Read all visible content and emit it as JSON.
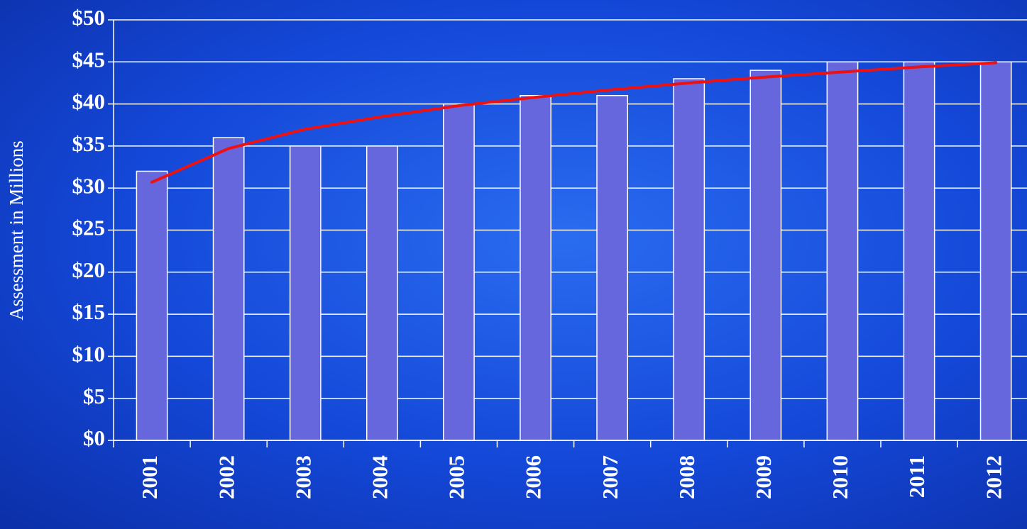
{
  "chart_data": {
    "type": "bar",
    "y_axis_label": "Assessment in Millions",
    "categories": [
      "2001",
      "2002",
      "2003",
      "2004",
      "2005",
      "2006",
      "2007",
      "2008",
      "2009",
      "2010",
      "2011",
      "2012"
    ],
    "values": [
      32,
      36,
      35,
      35,
      40,
      41,
      41,
      43,
      44,
      45,
      45,
      45
    ],
    "color": "#6666dd",
    "trendline": {
      "color": "#ee1111",
      "values": [
        30.7,
        34.7,
        37.0,
        38.5,
        39.8,
        40.8,
        41.7,
        42.5,
        43.2,
        43.8,
        44.4,
        44.9
      ]
    },
    "ylim": [
      0,
      50
    ],
    "yticks": [
      {
        "value": 0,
        "label": "$0"
      },
      {
        "value": 5,
        "label": "$5"
      },
      {
        "value": 10,
        "label": "$10"
      },
      {
        "value": 15,
        "label": "$15"
      },
      {
        "value": 20,
        "label": "$20"
      },
      {
        "value": 25,
        "label": "$25"
      },
      {
        "value": 30,
        "label": "$30"
      },
      {
        "value": 35,
        "label": "$35"
      },
      {
        "value": 40,
        "label": "$40"
      },
      {
        "value": 45,
        "label": "$45"
      },
      {
        "value": 50,
        "label": "$50"
      }
    ],
    "grid": true
  }
}
